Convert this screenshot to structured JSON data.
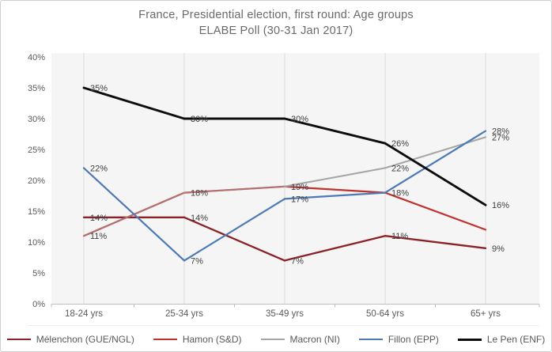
{
  "title": {
    "line1": "France, Presidential election, first round: Age groups",
    "line2": "ELABE Poll (30-31 Jan 2017)"
  },
  "chart_data": {
    "type": "line",
    "title": "France, Presidential election, first round: Age groups — ELABE Poll (30-31 Jan 2017)",
    "categories": [
      "18-24 yrs",
      "25-34 yrs",
      "35-49 yrs",
      "50-64 yrs",
      "65+ yrs"
    ],
    "series": [
      {
        "name": "Mélenchon (GUE/NGL)",
        "color": "#8b2227",
        "width": 2.3,
        "values": [
          14,
          14,
          7,
          11,
          9
        ],
        "data_labels": [
          "14%",
          "14%",
          "7%",
          "11%",
          "9%"
        ]
      },
      {
        "name": "Hamon (S&D)",
        "color": "#c0302c",
        "width": 2.2,
        "values": [
          11,
          18,
          19,
          18,
          12
        ],
        "data_labels": [
          null,
          null,
          null,
          null,
          null
        ]
      },
      {
        "name": "Macron (NI)",
        "color": "#a6a6a6",
        "width": 2.1,
        "values": [
          11,
          18,
          19,
          22,
          27
        ],
        "data_labels": [
          "11%",
          "18%",
          "19%",
          "22%",
          "27%"
        ]
      },
      {
        "name": "Fillon (EPP)",
        "color": "#4d79b5",
        "width": 2.2,
        "values": [
          22,
          7,
          17,
          18,
          28
        ],
        "data_labels": [
          "22%",
          "7%",
          "17%",
          "18%",
          "28%"
        ]
      },
      {
        "name": "Le Pen (ENF)",
        "color": "#0d0d0d",
        "width": 2.9,
        "values": [
          35,
          30,
          30,
          26,
          16
        ],
        "data_labels": [
          "35%",
          "30%",
          "30%",
          "26%",
          "16%"
        ]
      }
    ],
    "y_axis": {
      "min": 0,
      "max": 40,
      "step": 5,
      "tick_labels": [
        "0%",
        "5%",
        "10%",
        "15%",
        "20%",
        "25%",
        "30%",
        "35%",
        "40%"
      ]
    },
    "grid": "vertical-only",
    "legend_position": "bottom",
    "legend_items": [
      "Mélenchon (GUE/NGL)",
      "Hamon (S&D)",
      "Macron (NI)",
      "Fillon (EPP)",
      "Le Pen (ENF)"
    ]
  },
  "colors": {
    "title_text": "#6a6a6a",
    "axis_text": "#595959",
    "data_label_text": "#3f3f3f",
    "gridline": "#dadada",
    "axis_line": "#bfbfbf",
    "plot_fill": "#f5f5f5"
  }
}
